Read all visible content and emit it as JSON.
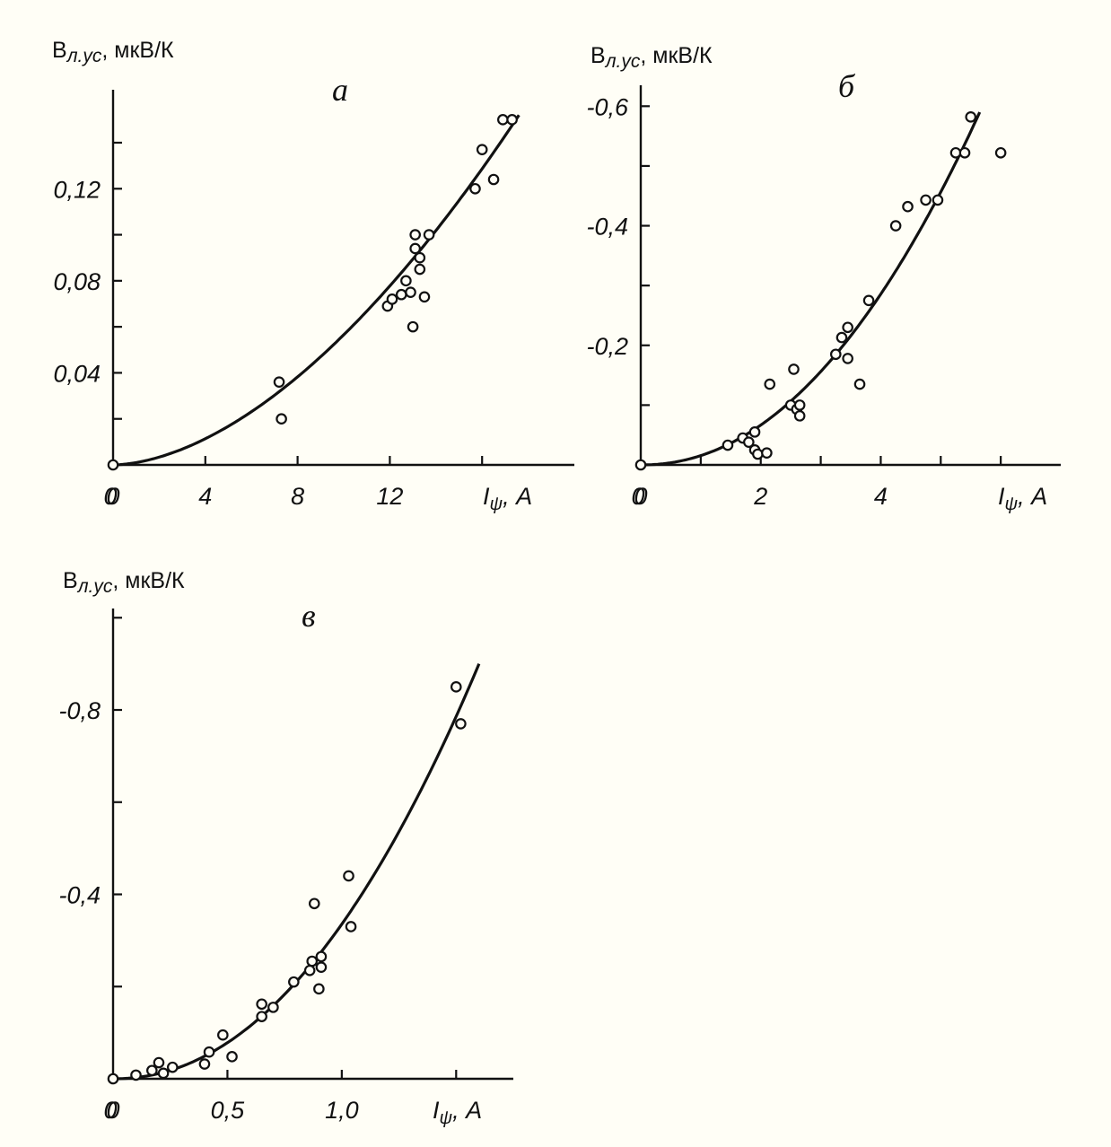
{
  "chart_data": [
    {
      "type": "scatter",
      "panel": "a",
      "ylabel": "Bл.ус, мкВ/К",
      "xlabel": "Iψ, А",
      "xlim": [
        0,
        20
      ],
      "ylim": [
        0,
        0.163
      ],
      "xticks": [
        0,
        4,
        8,
        12
      ],
      "xtick_labels": [
        "0",
        "4",
        "8",
        "12"
      ],
      "x_minor_ticks": [
        16
      ],
      "yticks": [
        0.04,
        0.08,
        0.12
      ],
      "ytick_labels": [
        "0,04",
        "0,08",
        "0,12"
      ],
      "y_minor_ticks": [
        0.02,
        0.06,
        0.1,
        0.14
      ],
      "curve_exponent": 1.75,
      "curve_end": [
        17.6,
        0.152
      ],
      "points": [
        [
          0,
          0
        ],
        [
          7.2,
          0.036
        ],
        [
          7.3,
          0.02
        ],
        [
          11.9,
          0.069
        ],
        [
          12.1,
          0.072
        ],
        [
          12.5,
          0.074
        ],
        [
          12.7,
          0.08
        ],
        [
          12.9,
          0.075
        ],
        [
          13.0,
          0.06
        ],
        [
          13.1,
          0.1
        ],
        [
          13.1,
          0.094
        ],
        [
          13.3,
          0.09
        ],
        [
          13.3,
          0.085
        ],
        [
          13.5,
          0.073
        ],
        [
          13.7,
          0.1
        ],
        [
          15.7,
          0.12
        ],
        [
          16.0,
          0.137
        ],
        [
          16.5,
          0.124
        ],
        [
          16.9,
          0.15
        ],
        [
          17.3,
          0.15
        ]
      ]
    },
    {
      "type": "scatter",
      "panel": "б",
      "ylabel": "Bл.ус, мкВ/К",
      "xlabel": "Iψ, А",
      "xlim": [
        0,
        7
      ],
      "ylim": [
        0,
        0.635
      ],
      "xticks": [
        0,
        2,
        4,
        6
      ],
      "xtick_labels": [
        "0",
        "2",
        "4",
        ""
      ],
      "x_minor_ticks": [
        1,
        3,
        5
      ],
      "yticks": [
        0.2,
        0.4,
        0.6
      ],
      "ytick_labels": [
        "-0,2",
        "-0,4",
        "-0,6"
      ],
      "y_minor_ticks": [
        0.1,
        0.3,
        0.5
      ],
      "curve_exponent": 2.1,
      "curve_end": [
        5.65,
        0.59
      ],
      "points": [
        [
          0,
          0
        ],
        [
          1.45,
          0.033
        ],
        [
          1.7,
          0.045
        ],
        [
          1.8,
          0.038
        ],
        [
          1.9,
          0.025
        ],
        [
          1.9,
          0.055
        ],
        [
          1.95,
          0.018
        ],
        [
          2.1,
          0.02
        ],
        [
          2.15,
          0.135
        ],
        [
          2.5,
          0.1
        ],
        [
          2.55,
          0.16
        ],
        [
          2.6,
          0.093
        ],
        [
          2.65,
          0.082
        ],
        [
          2.65,
          0.1
        ],
        [
          3.25,
          0.185
        ],
        [
          3.35,
          0.213
        ],
        [
          3.45,
          0.23
        ],
        [
          3.45,
          0.178
        ],
        [
          3.65,
          0.135
        ],
        [
          3.8,
          0.275
        ],
        [
          4.25,
          0.4
        ],
        [
          4.45,
          0.432
        ],
        [
          4.75,
          0.443
        ],
        [
          4.95,
          0.443
        ],
        [
          5.25,
          0.522
        ],
        [
          5.4,
          0.522
        ],
        [
          5.5,
          0.582
        ],
        [
          6.0,
          0.522
        ]
      ]
    },
    {
      "type": "scatter",
      "panel": "в",
      "ylabel": "Bл.ус, мкВ/К",
      "xlabel": "Iψ, А",
      "xlim": [
        0,
        1.75
      ],
      "ylim": [
        0,
        1.02
      ],
      "xticks": [
        0,
        0.5,
        1.0
      ],
      "xtick_labels": [
        "0",
        "0,5",
        "1,0"
      ],
      "x_minor_ticks": [
        1.5
      ],
      "yticks": [
        0.4,
        0.8
      ],
      "ytick_labels": [
        "-0,4",
        "-0,8"
      ],
      "y_minor_ticks": [
        0.2,
        0.6,
        1.0
      ],
      "curve_exponent": 2.1,
      "curve_end": [
        1.6,
        0.9
      ],
      "points": [
        [
          0,
          0
        ],
        [
          0.1,
          0.008
        ],
        [
          0.17,
          0.018
        ],
        [
          0.2,
          0.035
        ],
        [
          0.22,
          0.012
        ],
        [
          0.26,
          0.025
        ],
        [
          0.4,
          0.032
        ],
        [
          0.42,
          0.058
        ],
        [
          0.48,
          0.095
        ],
        [
          0.52,
          0.048
        ],
        [
          0.65,
          0.135
        ],
        [
          0.65,
          0.162
        ],
        [
          0.7,
          0.155
        ],
        [
          0.79,
          0.21
        ],
        [
          0.86,
          0.235
        ],
        [
          0.87,
          0.255
        ],
        [
          0.88,
          0.38
        ],
        [
          0.9,
          0.195
        ],
        [
          0.91,
          0.242
        ],
        [
          0.91,
          0.265
        ],
        [
          1.03,
          0.44
        ],
        [
          1.04,
          0.33
        ],
        [
          1.5,
          0.85
        ],
        [
          1.52,
          0.77
        ]
      ]
    }
  ]
}
